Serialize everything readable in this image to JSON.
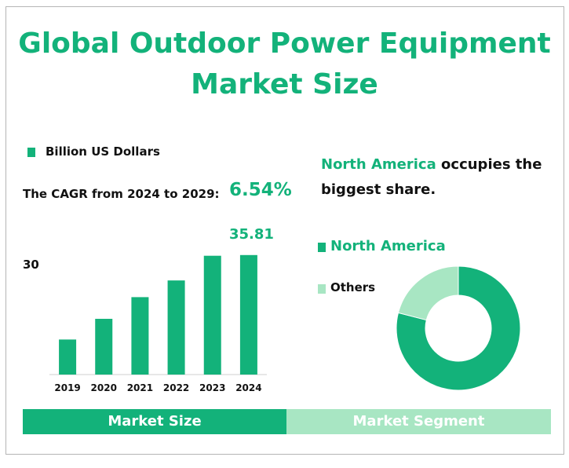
{
  "title_line1": "Global Outdoor Power Equipment",
  "title_line2": "Market Size",
  "legend_unit": "Billion US Dollars",
  "cagr_label": "The CAGR from 2024 to 2029:",
  "cagr_value": "6.54%",
  "peak_label": "35.81",
  "y_tick_label": "30",
  "share_highlight": "North America",
  "share_rest": " occupies the biggest share.",
  "tabs": {
    "left": "Market Size",
    "right": "Market Segment"
  },
  "colors": {
    "primary": "#13b27a",
    "secondary": "#a8e6c3",
    "frame": "#b5b5b5"
  },
  "chart_data": [
    {
      "type": "bar",
      "categories": [
        "2019",
        "2020",
        "2021",
        "2022",
        "2023",
        "2024"
      ],
      "series": [
        {
          "name": "Billion US Dollars",
          "values": [
            10.5,
            16.7,
            23.2,
            28.2,
            35.6,
            35.81
          ]
        }
      ],
      "ylim": [
        0,
        40
      ],
      "labeled_tick": 30,
      "grid": false
    },
    {
      "type": "pie",
      "style": "donut",
      "labels": [
        "North America",
        "Others"
      ],
      "values": [
        79,
        21
      ],
      "legend_position": "left"
    }
  ]
}
